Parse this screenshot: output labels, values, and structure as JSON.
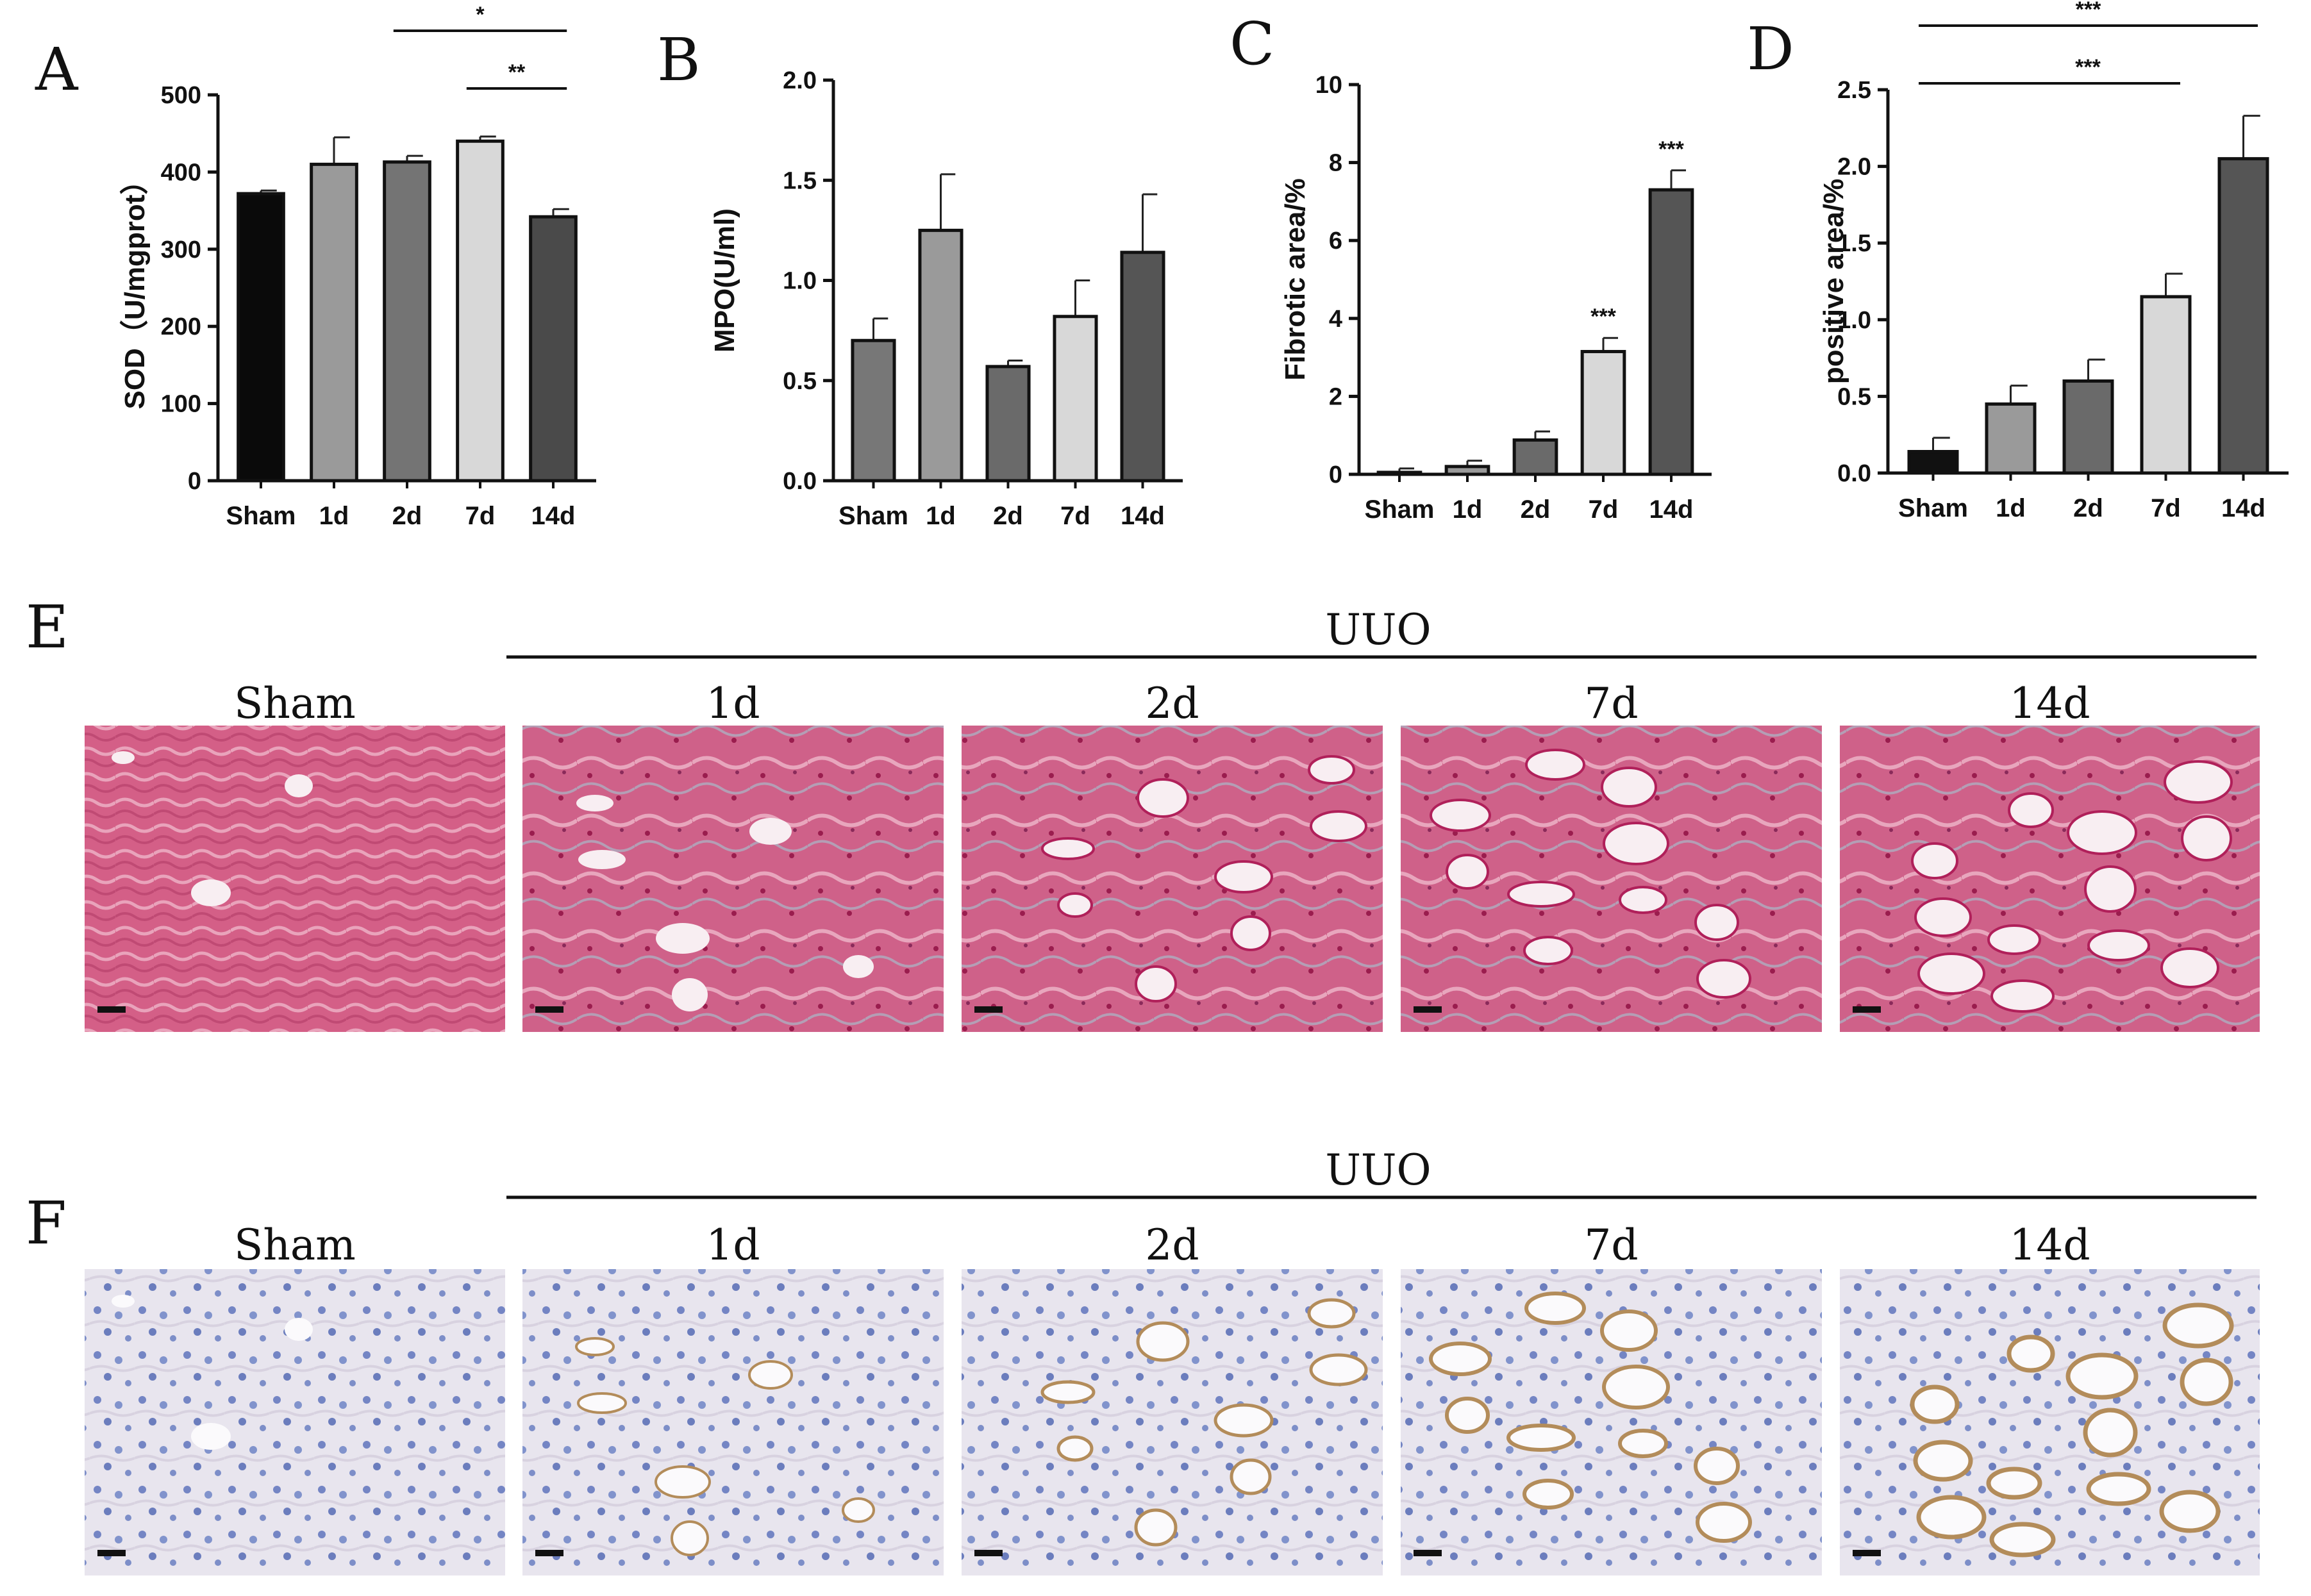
{
  "chart_data": [
    {
      "panel": "A",
      "type": "bar",
      "ylabel": "SOD（U/mgprot）",
      "categories": [
        "Sham",
        "1d",
        "2d",
        "7d",
        "14d"
      ],
      "values": [
        372,
        410,
        413,
        440,
        342
      ],
      "errors": [
        4,
        35,
        8,
        6,
        10
      ],
      "colors": [
        "#0a0a0a",
        "#9a9a9a",
        "#747474",
        "#d8d8d8",
        "#4a4a4a"
      ],
      "ylim": [
        0,
        500
      ],
      "yticks": [
        0,
        100,
        200,
        300,
        400,
        500
      ],
      "significance": [
        {
          "from": 2,
          "to": 4,
          "label": "*",
          "level": 1
        },
        {
          "from": 3,
          "to": 4,
          "label": "**",
          "level": 0
        }
      ],
      "bar_labels": [
        "",
        "",
        "",
        "",
        ""
      ]
    },
    {
      "panel": "B",
      "type": "bar",
      "ylabel": "MPO(U/ml)",
      "categories": [
        "Sham",
        "1d",
        "2d",
        "7d",
        "14d"
      ],
      "values": [
        0.7,
        1.25,
        0.57,
        0.82,
        1.14
      ],
      "errors": [
        0.11,
        0.28,
        0.03,
        0.18,
        0.29
      ],
      "colors": [
        "#777777",
        "#9a9a9a",
        "#6a6a6a",
        "#d8d8d8",
        "#555555"
      ],
      "ylim": [
        0,
        2.0
      ],
      "yticks": [
        0.0,
        0.5,
        1.0,
        1.5,
        2.0
      ],
      "significance": [],
      "bar_labels": [
        "",
        "",
        "",
        "",
        ""
      ]
    },
    {
      "panel": "C",
      "type": "bar",
      "ylabel": "Fibrotic area/%",
      "categories": [
        "Sham",
        "1d",
        "2d",
        "7d",
        "14d"
      ],
      "values": [
        0.05,
        0.2,
        0.88,
        3.15,
        7.3
      ],
      "errors": [
        0.1,
        0.15,
        0.22,
        0.35,
        0.5
      ],
      "colors": [
        "#1a1a1a",
        "#9a9a9a",
        "#6a6a6a",
        "#d8d8d8",
        "#555555"
      ],
      "ylim": [
        0,
        10
      ],
      "yticks": [
        0,
        2,
        4,
        6,
        8,
        10
      ],
      "significance": [],
      "bar_labels": [
        "",
        "",
        "",
        "***",
        "***"
      ]
    },
    {
      "panel": "D",
      "type": "bar",
      "ylabel": "positive area/%",
      "categories": [
        "Sham",
        "1d",
        "2d",
        "7d",
        "14d"
      ],
      "values": [
        0.14,
        0.45,
        0.6,
        1.15,
        2.05
      ],
      "errors": [
        0.09,
        0.12,
        0.14,
        0.15,
        0.28
      ],
      "colors": [
        "#111111",
        "#9a9a9a",
        "#6a6a6a",
        "#d8d8d8",
        "#555555"
      ],
      "ylim": [
        0,
        2.5
      ],
      "yticks": [
        0.0,
        0.5,
        1.0,
        1.5,
        2.0,
        2.5
      ],
      "significance": [
        {
          "from": 0,
          "to": 4,
          "label": "***",
          "level": 1
        },
        {
          "from": 0,
          "to": 3,
          "label": "***",
          "level": 0
        }
      ],
      "bar_labels": [
        "",
        "",
        "",
        "",
        ""
      ]
    }
  ],
  "images": {
    "E": {
      "letter": "E",
      "group_label": "UUO",
      "columns": [
        "Sham",
        "1d",
        "2d",
        "7d",
        "14d"
      ],
      "stain_colors": {
        "base": "#d85a86",
        "light": "#f3d7e0",
        "fiber": "#9fb4c4",
        "dark": "#b0205a"
      }
    },
    "F": {
      "letter": "F",
      "group_label": "UUO",
      "columns": [
        "Sham",
        "1d",
        "2d",
        "7d",
        "14d"
      ],
      "stain_colors": {
        "base": "#e4e1ec",
        "light": "#f7f6f8",
        "nuclei": "#6a7dbf",
        "brown": "#b38c5a"
      }
    }
  }
}
